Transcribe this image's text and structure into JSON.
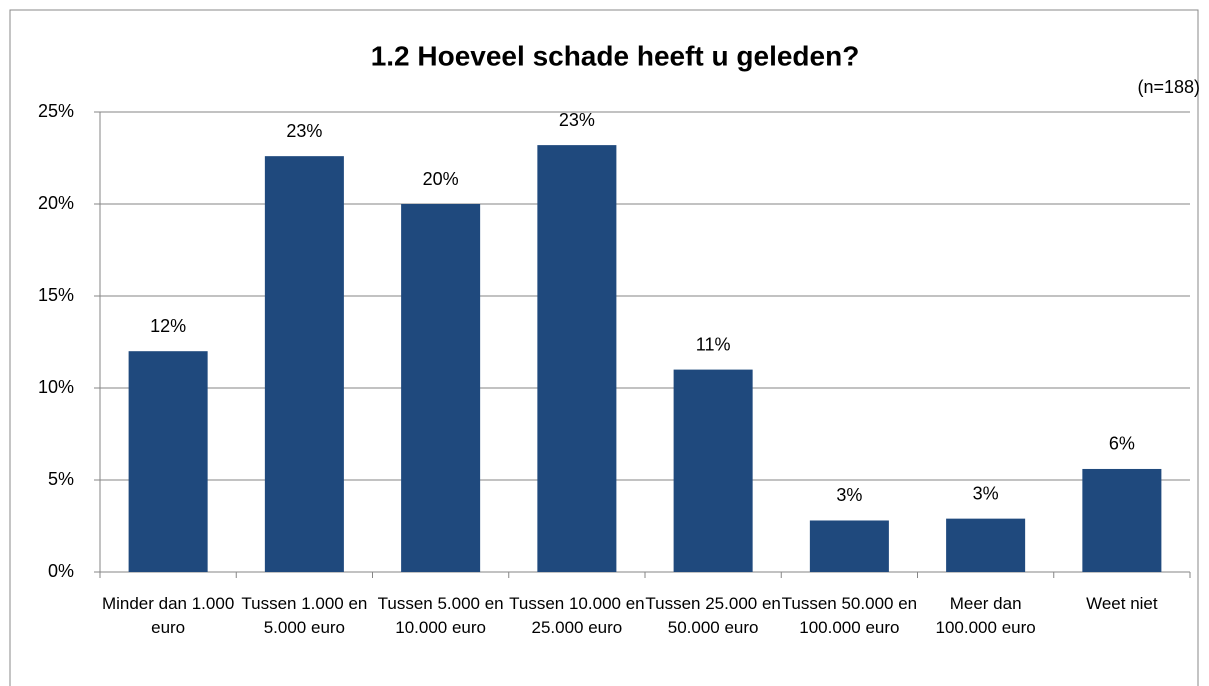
{
  "chart_data": {
    "type": "bar",
    "title": "1.2 Hoeveel schade heeft u geleden?",
    "annotation": "(n=188)",
    "categories": [
      "Minder dan 1.000 euro",
      "Tussen 1.000 en 5.000 euro",
      "Tussen 5.000 en 10.000 euro",
      "Tussen 10.000 en 25.000 euro",
      "Tussen 25.000 en 50.000 euro",
      "Tussen 50.000 en 100.000 euro",
      "Meer dan 100.000 euro",
      "Weet niet"
    ],
    "values": [
      12,
      22.6,
      20,
      23.2,
      11,
      2.8,
      2.9,
      5.6
    ],
    "value_labels": [
      "12%",
      "23%",
      "20%",
      "23%",
      "11%",
      "3%",
      "3%",
      "6%"
    ],
    "color": "#1f497d",
    "ylim": [
      0,
      25
    ],
    "yticks": [
      {
        "value": 0,
        "label": "0%"
      },
      {
        "value": 5,
        "label": "5%"
      },
      {
        "value": 10,
        "label": "10%"
      },
      {
        "value": 15,
        "label": "15%"
      },
      {
        "value": 20,
        "label": "20%"
      },
      {
        "value": 25,
        "label": "25%"
      }
    ],
    "grid": true
  }
}
